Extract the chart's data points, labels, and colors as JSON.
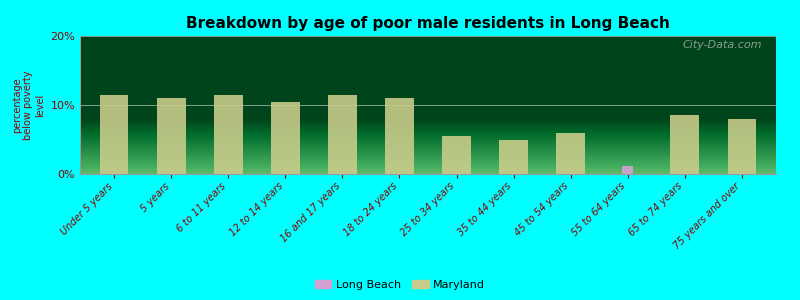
{
  "title": "Breakdown by age of poor male residents in Long Beach",
  "ylabel": "percentage\nbelow poverty\nlevel",
  "background_color": "#00FFFF",
  "categories": [
    "Under 5 years",
    "5 years",
    "6 to 11 years",
    "12 to 14 years",
    "16 and 17 years",
    "18 to 24 years",
    "25 to 34 years",
    "35 to 44 years",
    "45 to 54 years",
    "55 to 64 years",
    "65 to 74 years",
    "75 years and over"
  ],
  "maryland_values": [
    11.5,
    11.0,
    11.5,
    10.5,
    11.5,
    11.0,
    5.5,
    5.0,
    6.0,
    0.0,
    8.5,
    8.0
  ],
  "longbeach_values": [
    0.0,
    0.0,
    0.0,
    0.0,
    0.0,
    0.0,
    0.0,
    0.0,
    0.0,
    1.2,
    0.0,
    0.0
  ],
  "maryland_color": "#c8cc8a",
  "longbeach_color": "#d4a0d4",
  "ylim": [
    0,
    20
  ],
  "yticks": [
    0,
    10,
    20
  ],
  "watermark": "City-Data.com"
}
